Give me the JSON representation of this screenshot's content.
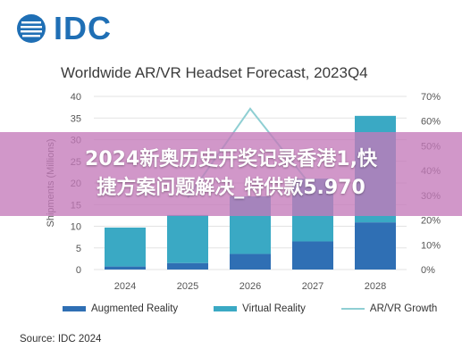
{
  "brand": {
    "logo_text": "IDC"
  },
  "colors": {
    "ar": "#2f6fb4",
    "vr": "#3aa9c4",
    "growth": "#8fcfd3",
    "logo": "#1f6fb5"
  },
  "overlay": {
    "line1": "2024新奥历史开奖记录香港1,快",
    "line2": "捷方案问题解决_特供款5.970"
  },
  "source": "Source: IDC 2024",
  "chart_data": {
    "type": "bar",
    "stacked": true,
    "title": "Worldwide AR/VR Headset Forecast, 2023Q4",
    "ylabel": "Shipments (Millions)",
    "y2label": "",
    "categories": [
      "2024",
      "2025",
      "2026",
      "2027",
      "2028"
    ],
    "series": [
      {
        "name": "Augmented Reality",
        "type": "bar",
        "axis": "left",
        "values": [
          0.7,
          1.5,
          3.6,
          6.5,
          10.9
        ]
      },
      {
        "name": "Virtual Reality",
        "type": "bar",
        "axis": "left",
        "values": [
          9.0,
          11.1,
          13.3,
          14.5,
          24.6
        ]
      },
      {
        "name": "AR/VR Growth",
        "type": "line",
        "axis": "right",
        "values": [
          null,
          29,
          65,
          33,
          null
        ]
      }
    ],
    "ylim": [
      0,
      40
    ],
    "yticks": [
      "0",
      "5",
      "10",
      "15",
      "20",
      "25",
      "30",
      "35",
      "40"
    ],
    "y2lim": [
      0,
      70
    ],
    "y2ticks": [
      "0%",
      "10%",
      "20%",
      "30%",
      "40%",
      "50%",
      "60%",
      "70%"
    ],
    "legend_position": "bottom",
    "grid": true
  }
}
